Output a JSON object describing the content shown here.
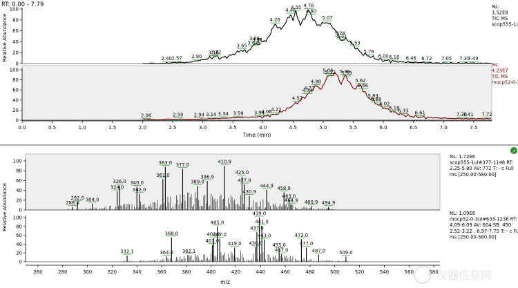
{
  "header": {
    "rt_range": "RT: 0.00 - 7.79"
  },
  "colors": {
    "trace_black": "#000000",
    "trace_dark_red": "#7a0000",
    "panel_grey": "#efefef",
    "peak_mark_green": "#2aa02a"
  },
  "chart_data": [
    {
      "type": "line",
      "name": "chromatogram-top",
      "title": "TIC MS",
      "ylabel": "Relative Abundance",
      "xlabel": "Time (min)",
      "xlim": [
        0,
        7.8
      ],
      "ylim": [
        0,
        100
      ],
      "x_ticks": [
        "0.0",
        "0.5",
        "1.0",
        "1.5",
        "2.0",
        "2.5",
        "3.0",
        "3.5",
        "4.0",
        "4.5",
        "5.0",
        "5.5",
        "6.0",
        "6.5",
        "7.0",
        "7.5"
      ],
      "y_ticks": [
        "0",
        "20",
        "40",
        "60",
        "80",
        "100"
      ],
      "side_labels": [
        "NL:",
        "1.52E8",
        "TIC MS",
        "scop555-1ul"
      ],
      "x": [
        2.0,
        2.3,
        2.4,
        2.57,
        2.75,
        2.9,
        3.05,
        3.18,
        3.22,
        3.3,
        3.45,
        3.6,
        3.65,
        3.72,
        3.83,
        3.86,
        3.95,
        3.91,
        4.05,
        4.2,
        4.3,
        4.46,
        4.5,
        4.55,
        4.62,
        4.7,
        4.76,
        4.8,
        4.9,
        5.07,
        5.2,
        5.31,
        5.4,
        5.53,
        5.65,
        5.76,
        5.9,
        6.0,
        6.18,
        6.3,
        6.46,
        6.6,
        6.72,
        6.9,
        7.05,
        7.2,
        7.35,
        7.49,
        7.65,
        7.79
      ],
      "y": [
        0,
        0.5,
        1,
        2,
        2,
        5,
        8,
        12,
        13,
        10,
        14,
        22,
        25,
        21,
        30,
        38,
        33,
        45,
        40,
        72,
        62,
        90,
        80,
        95,
        70,
        85,
        98,
        88,
        70,
        76,
        62,
        42,
        45,
        30,
        18,
        14,
        8,
        6,
        4,
        3,
        2,
        2,
        1.5,
        1,
        1,
        1,
        1,
        1,
        0.5,
        0.5
      ],
      "peak_labels": [
        {
          "x": 2.4,
          "label": "2.40"
        },
        {
          "x": 2.57,
          "label": "2.57"
        },
        {
          "x": 2.9,
          "label": "2.90"
        },
        {
          "x": 3.18,
          "label": "3.18"
        },
        {
          "x": 3.22,
          "label": "3.22"
        },
        {
          "x": 3.65,
          "label": "3.65"
        },
        {
          "x": 3.83,
          "label": "3.83"
        },
        {
          "x": 3.86,
          "label": "3.86"
        },
        {
          "x": 3.91,
          "label": "3.91"
        },
        {
          "x": 4.2,
          "label": "4.20"
        },
        {
          "x": 4.46,
          "label": "4.46"
        },
        {
          "x": 4.55,
          "label": "4.55"
        },
        {
          "x": 4.76,
          "label": "4.76"
        },
        {
          "x": 4.8,
          "label": "4.80"
        },
        {
          "x": 5.07,
          "label": "5.07"
        },
        {
          "x": 5.31,
          "label": "5.31"
        },
        {
          "x": 5.28,
          "label": "5.28"
        },
        {
          "x": 5.53,
          "label": "5.53"
        },
        {
          "x": 5.76,
          "label": "5.76"
        },
        {
          "x": 6.0,
          "label": "6.00"
        },
        {
          "x": 6.18,
          "label": "6.18"
        },
        {
          "x": 6.46,
          "label": "6.46"
        },
        {
          "x": 6.72,
          "label": "6.72"
        },
        {
          "x": 7.05,
          "label": "7.05"
        },
        {
          "x": 7.35,
          "label": "7.35"
        },
        {
          "x": 7.49,
          "label": "7.49"
        }
      ]
    },
    {
      "type": "line",
      "name": "chromatogram-bottom",
      "title": "TIC MS",
      "ylabel": "Relative Abundance",
      "xlabel": "Time (min)",
      "xlim": [
        0,
        7.8
      ],
      "ylim": [
        0,
        100
      ],
      "side_labels": [
        "NL:",
        "4.23E7",
        "TIC MS",
        "mocp52-0-3"
      ],
      "x": [
        2.0,
        2.06,
        2.59,
        2.94,
        3.14,
        3.34,
        3.59,
        3.94,
        4.06,
        4.22,
        4.4,
        4.57,
        4.65,
        4.74,
        4.77,
        4.88,
        4.98,
        5.08,
        5.12,
        5.2,
        5.3,
        5.36,
        5.39,
        5.5,
        5.62,
        5.66,
        5.75,
        5.83,
        5.88,
        6.02,
        6.18,
        6.33,
        6.45,
        6.61,
        6.8,
        7.0,
        7.3,
        7.41,
        7.6,
        7.72,
        7.79
      ],
      "y": [
        0,
        1,
        2,
        2,
        3,
        4,
        5,
        6,
        8,
        12,
        22,
        35,
        42,
        50,
        55,
        68,
        62,
        90,
        86,
        95,
        72,
        88,
        85,
        62,
        70,
        60,
        45,
        40,
        33,
        24,
        16,
        10,
        8,
        6,
        5,
        4,
        3,
        3,
        3,
        3,
        3
      ],
      "peak_labels": [
        {
          "x": 2.06,
          "label": "2.06"
        },
        {
          "x": 2.59,
          "label": "2.59"
        },
        {
          "x": 2.94,
          "label": "2.94"
        },
        {
          "x": 3.14,
          "label": "3.14"
        },
        {
          "x": 3.34,
          "label": "3.34"
        },
        {
          "x": 3.59,
          "label": "3.59"
        },
        {
          "x": 3.94,
          "label": "3.94"
        },
        {
          "x": 4.06,
          "label": "4.06"
        },
        {
          "x": 4.22,
          "label": "4.22"
        },
        {
          "x": 4.57,
          "label": "4.57"
        },
        {
          "x": 4.74,
          "label": "4.74"
        },
        {
          "x": 4.77,
          "label": "4.77"
        },
        {
          "x": 4.88,
          "label": "4.88"
        },
        {
          "x": 5.08,
          "label": "5.08"
        },
        {
          "x": 5.12,
          "label": "5.12"
        },
        {
          "x": 5.39,
          "label": "5.39"
        },
        {
          "x": 5.36,
          "label": "5.36"
        },
        {
          "x": 5.62,
          "label": "5.62"
        },
        {
          "x": 5.66,
          "label": "5.66"
        },
        {
          "x": 5.83,
          "label": "5.83"
        },
        {
          "x": 5.88,
          "label": "5.88"
        },
        {
          "x": 6.02,
          "label": "6.02"
        },
        {
          "x": 6.18,
          "label": "6.18"
        },
        {
          "x": 6.33,
          "label": "6.33"
        },
        {
          "x": 6.61,
          "label": "6.61"
        },
        {
          "x": 7.3,
          "label": "7.30"
        },
        {
          "x": 7.41,
          "label": "7.41"
        },
        {
          "x": 7.72,
          "label": "7.72"
        }
      ]
    },
    {
      "type": "bar",
      "name": "spectrum-top",
      "ylabel": "Relative Abundance",
      "xlabel": "m/z",
      "xlim": [
        250,
        585
      ],
      "ylim": [
        0,
        100
      ],
      "side_labels": [
        "NL: 1.72E6",
        "scop555-1ul#377-1148 RT:",
        "3.25-5.80 AV: 772 T: - c Full",
        "ms [250.00-580.00]"
      ],
      "peaks": [
        {
          "mz": 288.0,
          "y": 6
        },
        {
          "mz": 292.0,
          "y": 16
        },
        {
          "mz": 304.0,
          "y": 13
        },
        {
          "mz": 324.0,
          "y": 38
        },
        {
          "mz": 326.0,
          "y": 50
        },
        {
          "mz": 340.0,
          "y": 47
        },
        {
          "mz": 342.0,
          "y": 33
        },
        {
          "mz": 361.0,
          "y": 63
        },
        {
          "mz": 363.0,
          "y": 88
        },
        {
          "mz": 377.0,
          "y": 84
        },
        {
          "mz": 389.0,
          "y": 49
        },
        {
          "mz": 396.9,
          "y": 59
        },
        {
          "mz": 410.9,
          "y": 90
        },
        {
          "mz": 425.0,
          "y": 68
        },
        {
          "mz": 427.0,
          "y": 52
        },
        {
          "mz": 430.9,
          "y": 29
        },
        {
          "mz": 444.9,
          "y": 41
        },
        {
          "mz": 458.9,
          "y": 36
        },
        {
          "mz": 463.0,
          "y": 20
        },
        {
          "mz": 464.9,
          "y": 11
        },
        {
          "mz": 480.9,
          "y": 8
        },
        {
          "mz": 494.9,
          "y": 6
        }
      ]
    },
    {
      "type": "bar",
      "name": "spectrum-bottom",
      "ylabel": "Relative Abundance",
      "xlabel": "m/z",
      "xlim": [
        250,
        585
      ],
      "ylim": [
        0,
        100
      ],
      "x_ticks": [
        "260",
        "280",
        "300",
        "320",
        "340",
        "360",
        "380",
        "400",
        "420",
        "440",
        "460",
        "480",
        "500",
        "520",
        "540",
        "560",
        "580"
      ],
      "side_labels": [
        "NL: 1.09E6",
        "mocp52-0-3ul#633-1236 RT:",
        "4.09-6.09 AV: 604 SB: 450",
        "2.52-3.22 , 6.97-7.75 T: - c Full",
        "ms [250.00-580.00]"
      ],
      "peaks": [
        {
          "mz": 332.1,
          "y": 14
        },
        {
          "mz": 364.0,
          "y": 12
        },
        {
          "mz": 368.0,
          "y": 55
        },
        {
          "mz": 382.1,
          "y": 15
        },
        {
          "mz": 401.0,
          "y": 38
        },
        {
          "mz": 402.0,
          "y": 53
        },
        {
          "mz": 405.0,
          "y": 80
        },
        {
          "mz": 407.0,
          "y": 52
        },
        {
          "mz": 419.0,
          "y": 32
        },
        {
          "mz": 436.0,
          "y": 33
        },
        {
          "mz": 437.0,
          "y": 67
        },
        {
          "mz": 439.0,
          "y": 100
        },
        {
          "mz": 441.0,
          "y": 81
        },
        {
          "mz": 443.0,
          "y": 50
        },
        {
          "mz": 455.0,
          "y": 29
        },
        {
          "mz": 457.0,
          "y": 17
        },
        {
          "mz": 473.0,
          "y": 51
        },
        {
          "mz": 477.0,
          "y": 32
        },
        {
          "mz": 487.0,
          "y": 16
        },
        {
          "mz": 509.0,
          "y": 12
        }
      ]
    }
  ],
  "watermark": {
    "text": "仪器信息网"
  }
}
